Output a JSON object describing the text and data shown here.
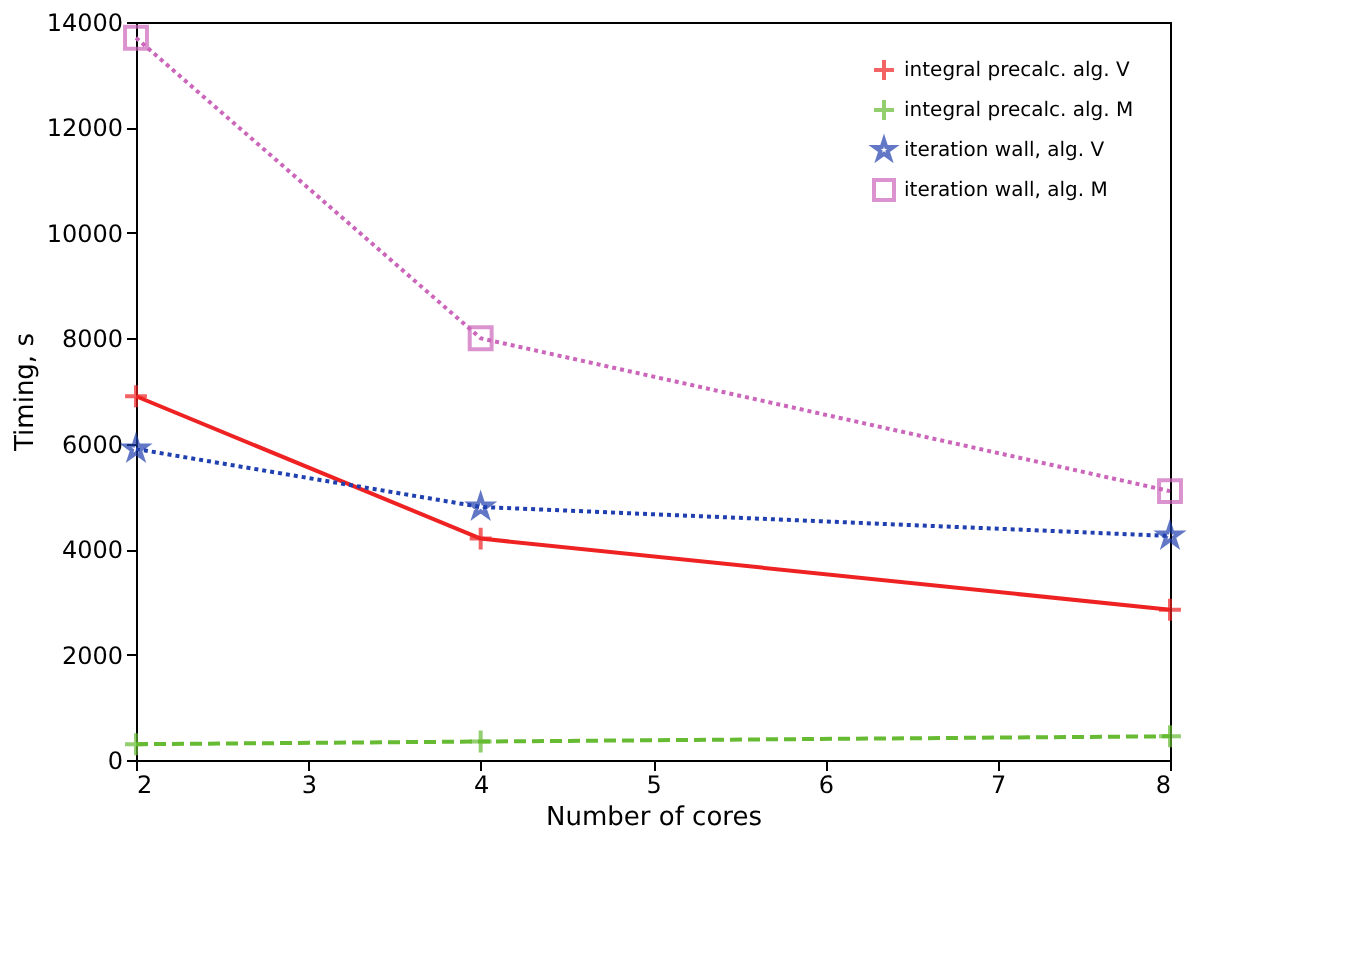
{
  "chart_data": {
    "type": "line",
    "xlabel": "Number of cores",
    "ylabel": "Timing, s",
    "x": [
      2,
      4,
      8
    ],
    "series": [
      {
        "name": "integral precalc. alg. V",
        "color": "#ee2222",
        "values": [
          6900,
          4200,
          2850
        ],
        "marker": "cross",
        "line_style": "solid"
      },
      {
        "name": "integral precalc. alg. M",
        "color": "#66bb33",
        "values": [
          300,
          350,
          450
        ],
        "marker": "cross",
        "line_style": "dashed"
      },
      {
        "name": "iteration wall, alg. V",
        "color": "#2040b0",
        "values": [
          5900,
          4800,
          4250
        ],
        "marker": "star",
        "line_style": "dotted"
      },
      {
        "name": "iteration wall, alg. M",
        "color": "#cc66bb",
        "values": [
          13700,
          8000,
          5100
        ],
        "marker": "square",
        "line_style": "dotted"
      }
    ],
    "xlim": [
      2,
      8
    ],
    "xticks": [
      2,
      3,
      4,
      5,
      6,
      7,
      8
    ],
    "ylim": [
      0,
      14000
    ],
    "yticks": [
      0,
      2000,
      4000,
      6000,
      8000,
      10000,
      12000,
      14000
    ],
    "grid": false,
    "legend": "top right"
  }
}
